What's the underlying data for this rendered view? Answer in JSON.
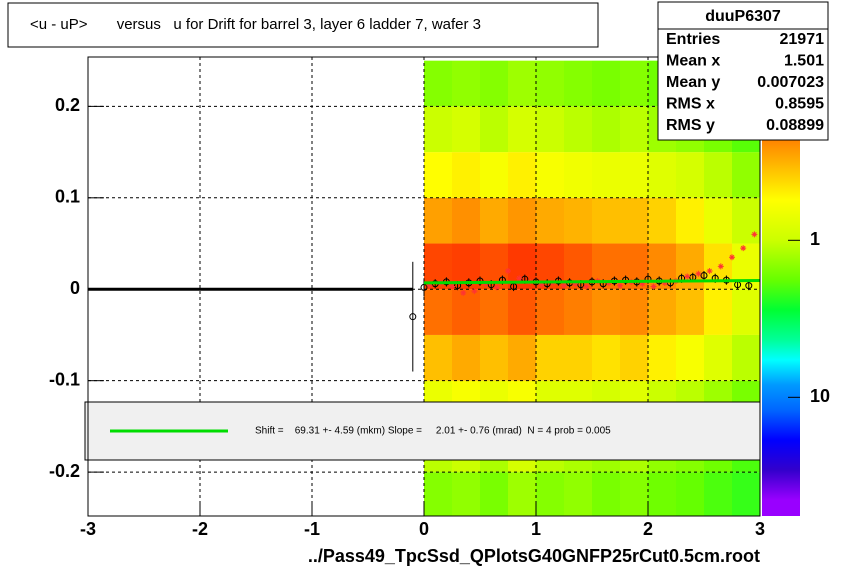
{
  "chart_data": {
    "type": "heatmap",
    "title": "<u - uP>       versus   u for Drift for barrel 3, layer 6 ladder 7, wafer 3",
    "x_label": "../Pass49_TpcSsd_QPlotsG40GNFP25rCut0.5cm.root",
    "xlim": [
      -3,
      3
    ],
    "ylim": [
      -0.248,
      0.254
    ],
    "xticks": [
      -3,
      -2,
      -1,
      0,
      1,
      2,
      3
    ],
    "yticks": [
      -0.2,
      -0.1,
      0,
      0.1,
      0.2
    ],
    "grid": true,
    "heatmap": {
      "x_edges": [
        0,
        0.25,
        0.5,
        0.75,
        1,
        1.25,
        1.5,
        1.75,
        2,
        2.25,
        2.5,
        2.75,
        3
      ],
      "y_edges": [
        -0.25,
        -0.2,
        -0.15,
        -0.1,
        -0.05,
        0,
        0.05,
        0.1,
        0.15,
        0.2,
        0.25
      ],
      "counts": [
        [
          1.5,
          1.4,
          1.6,
          1.3,
          1.5,
          1.4,
          1.6,
          1.5,
          1.7,
          1.8,
          2,
          2.2
        ],
        [
          1.1,
          1,
          1.2,
          0.9,
          1.1,
          1.2,
          1.3,
          1.2,
          1.4,
          1.5,
          1.7,
          2
        ],
        [
          0.7,
          0.6,
          0.7,
          0.6,
          0.8,
          0.8,
          0.9,
          0.8,
          1,
          1.1,
          1.3,
          1.6
        ],
        [
          0.35,
          0.3,
          0.35,
          0.3,
          0.4,
          0.4,
          0.45,
          0.4,
          0.5,
          0.6,
          0.8,
          1.1
        ],
        [
          0.2,
          0.18,
          0.2,
          0.17,
          0.2,
          0.22,
          0.25,
          0.24,
          0.3,
          0.35,
          0.5,
          0.8
        ],
        [
          0.15,
          0.14,
          0.16,
          0.13,
          0.15,
          0.17,
          0.2,
          0.2,
          0.24,
          0.3,
          0.45,
          0.7
        ],
        [
          0.28,
          0.25,
          0.3,
          0.26,
          0.3,
          0.32,
          0.35,
          0.35,
          0.4,
          0.5,
          0.7,
          1
        ],
        [
          0.55,
          0.5,
          0.6,
          0.5,
          0.6,
          0.65,
          0.7,
          0.7,
          0.8,
          0.9,
          1.1,
          1.4
        ],
        [
          1,
          0.9,
          1.1,
          0.9,
          1,
          1.1,
          1.2,
          1.1,
          1.3,
          1.4,
          1.6,
          1.9
        ],
        [
          1.5,
          1.4,
          1.5,
          1.3,
          1.4,
          1.5,
          1.6,
          1.5,
          1.7,
          1.8,
          2,
          2.3
        ]
      ]
    },
    "colorbar": {
      "zlim": [
        0.068,
        57
      ],
      "log": true,
      "ticks": [
        1,
        10
      ]
    },
    "baseline": {
      "x": [
        -3,
        -0.1
      ],
      "values": [
        0,
        0
      ]
    },
    "fit": {
      "color": "#00dd00",
      "x": [
        0,
        3
      ],
      "values": [
        0.007,
        0.0095
      ],
      "label": "Shift =    69.31 +- 4.59 (mkm) Slope =     2.01 +- 0.76 (mrad)  N = 4 prob = 0.005"
    },
    "series": [
      {
        "marker": "circle",
        "color": "#000000",
        "x": [
          -0.1,
          0,
          0.1,
          0.2,
          0.3,
          0.4,
          0.5,
          0.6,
          0.7,
          0.8,
          0.9,
          1,
          1.1,
          1.2,
          1.3,
          1.4,
          1.5,
          1.6,
          1.7,
          1.8,
          1.9,
          2,
          2.1,
          2.2,
          2.3,
          2.4,
          2.5,
          2.6,
          2.7,
          2.8,
          2.9
        ],
        "values": [
          -0.03,
          0.002,
          0.006,
          0.008,
          0.004,
          0.007,
          0.009,
          0.005,
          0.01,
          0.003,
          0.011,
          0.008,
          0.006,
          0.009,
          0.007,
          0.005,
          0.008,
          0.006,
          0.009,
          0.01,
          0.008,
          0.011,
          0.009,
          0.007,
          0.012,
          0.013,
          0.015,
          0.012,
          0.01,
          0.005,
          0.004
        ],
        "errors": [
          0.06,
          0.01,
          0.005,
          0.005,
          0.005,
          0.005,
          0.005,
          0.005,
          0.005,
          0.005,
          0.005,
          0.005,
          0.005,
          0.005,
          0.005,
          0.005,
          0.005,
          0.005,
          0.005,
          0.005,
          0.005,
          0.005,
          0.005,
          0.005,
          0.005,
          0.005,
          0.005,
          0.005,
          0.005,
          0.005,
          0.005
        ]
      },
      {
        "marker": "star",
        "color": "#ff3333",
        "x": [
          0.05,
          0.15,
          0.25,
          0.35,
          0.45,
          0.55,
          0.65,
          0.75,
          0.85,
          0.95,
          1.05,
          1.15,
          1.25,
          1.35,
          1.45,
          1.55,
          1.65,
          1.75,
          1.85,
          1.95,
          2.05,
          2.15,
          2.25,
          2.35,
          2.45,
          2.55,
          2.65,
          2.75,
          2.85,
          2.95
        ],
        "values": [
          0.004,
          0.007,
          0.003,
          -0.004,
          -0.002,
          0.006,
          0.002,
          0.02,
          0.012,
          0.008,
          0.005,
          0.007,
          0.004,
          0.006,
          0.003,
          0.009,
          0.007,
          0.004,
          0.008,
          0.006,
          0.003,
          0.007,
          0.009,
          0.014,
          0.017,
          0.02,
          0.025,
          0.035,
          0.045,
          0.06
        ]
      }
    ],
    "stats": {
      "name": "duuP6307",
      "rows": [
        {
          "label": "Entries",
          "value": 21971
        },
        {
          "label": "Mean x",
          "value": 1.501
        },
        {
          "label": "Mean y",
          "value": 0.007023
        },
        {
          "label": "RMS x",
          "value": 0.8595
        },
        {
          "label": "RMS y",
          "value": 0.08899
        }
      ]
    }
  }
}
